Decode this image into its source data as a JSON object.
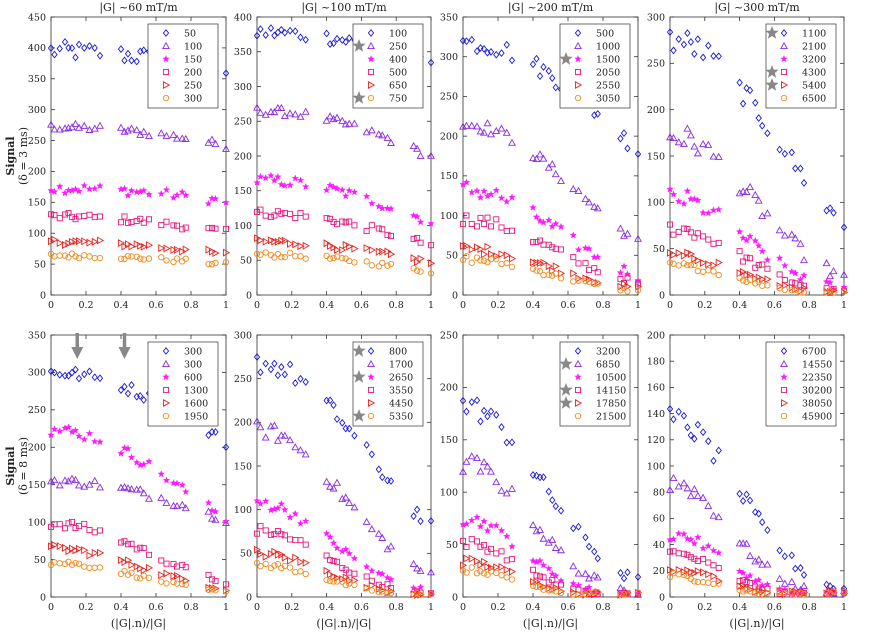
{
  "chart_data": {
    "type": "scatter",
    "shared": {
      "ylabel_top": "Signal",
      "ylabel_top_sub": "(δ = 3 ms)",
      "ylabel_bottom": "Signal",
      "ylabel_bottom_sub": "(δ = 8 ms)",
      "xlabel": "(|G|.n)/|G|",
      "column_titles": [
        "|G| ~60 mT/m",
        "|G| ~100 mT/m",
        "|G| ~200 mT/m",
        "|G| ~300 mT/m"
      ],
      "x_ticks": [
        "0",
        "0.2",
        "0.4",
        "0.6",
        "0.8",
        "1"
      ],
      "xlim": [
        0,
        1
      ],
      "series_styles": [
        {
          "marker": "diamond",
          "color": "#1a1adb"
        },
        {
          "marker": "triangle",
          "color": "#8a2be2"
        },
        {
          "marker": "star",
          "color": "#ff1aff"
        },
        {
          "marker": "square",
          "color": "#e6197f"
        },
        {
          "marker": "triangle-right",
          "color": "#e8231e"
        },
        {
          "marker": "circle",
          "color": "#f08c1e"
        }
      ],
      "x_samples": [
        0.0,
        0.02,
        0.05,
        0.08,
        0.1,
        0.12,
        0.14,
        0.16,
        0.19,
        0.22,
        0.25,
        0.28,
        0.4,
        0.42,
        0.44,
        0.46,
        0.49,
        0.51,
        0.53,
        0.56,
        0.63,
        0.66,
        0.7,
        0.72,
        0.75,
        0.77,
        0.9,
        0.92,
        0.94,
        1.0
      ]
    },
    "panels": [
      {
        "id": "r1c1",
        "ylim": [
          0,
          450
        ],
        "y_ticks": [
          "0",
          "50",
          "100",
          "150",
          "200",
          "250",
          "300",
          "350",
          "400",
          "450"
        ],
        "legend": [
          "50",
          "100",
          "150",
          "200",
          "250",
          "300"
        ],
        "legend_stars": [],
        "series": [
          {
            "y0": 395,
            "decay": 0.1,
            "scatter": 15
          },
          {
            "y0": 272,
            "decay": 0.13,
            "scatter": 6
          },
          {
            "y0": 173,
            "decay": 0.15,
            "scatter": 8
          },
          {
            "y0": 127,
            "decay": 0.25,
            "scatter": 6
          },
          {
            "y0": 86,
            "decay": 0.3,
            "scatter": 5
          },
          {
            "y0": 64,
            "decay": 0.28,
            "scatter": 4
          }
        ]
      },
      {
        "id": "r1c2",
        "ylim": [
          0,
          400
        ],
        "y_ticks": [
          "0",
          "50",
          "100",
          "150",
          "200",
          "250",
          "300",
          "350",
          "400"
        ],
        "legend": [
          "100",
          "250",
          "400",
          "500",
          "650",
          "750"
        ],
        "legend_stars": [
          1,
          5
        ],
        "series": [
          {
            "y0": 378,
            "decay": 0.13,
            "scatter": 10
          },
          {
            "y0": 265,
            "decay": 0.32,
            "scatter": 6
          },
          {
            "y0": 165,
            "decay": 0.5,
            "scatter": 8
          },
          {
            "y0": 118,
            "decay": 0.55,
            "scatter": 6
          },
          {
            "y0": 77,
            "decay": 0.55,
            "scatter": 5
          },
          {
            "y0": 58,
            "decay": 0.6,
            "scatter": 4
          }
        ]
      },
      {
        "id": "r1c3",
        "ylim": [
          0,
          350
        ],
        "y_ticks": [
          "0",
          "50",
          "100",
          "150",
          "200",
          "250",
          "300",
          "350"
        ],
        "legend": [
          "500",
          "1000",
          "1500",
          "2050",
          "2550",
          "3050"
        ],
        "legend_stars": [
          2
        ],
        "series": [
          {
            "y0": 318,
            "decay": 0.62,
            "scatter": 12
          },
          {
            "y0": 215,
            "decay": 1.3,
            "scatter": 8
          },
          {
            "y0": 133,
            "decay": 1.9,
            "scatter": 12
          },
          {
            "y0": 95,
            "decay": 2.1,
            "scatter": 8
          },
          {
            "y0": 58,
            "decay": 2.2,
            "scatter": 6
          },
          {
            "y0": 45,
            "decay": 2.4,
            "scatter": 5
          }
        ]
      },
      {
        "id": "r1c4",
        "ylim": [
          0,
          300
        ],
        "y_ticks": [
          "0",
          "50",
          "100",
          "150",
          "200",
          "250",
          "300"
        ],
        "legend": [
          "1100",
          "2100",
          "3200",
          "4300",
          "5400",
          "6500"
        ],
        "legend_stars": [
          0,
          3,
          4
        ],
        "series": [
          {
            "y0": 275,
            "decay": 1.45,
            "scatter": 15
          },
          {
            "y0": 172,
            "decay": 2.5,
            "scatter": 14
          },
          {
            "y0": 105,
            "decay": 3.2,
            "scatter": 12
          },
          {
            "y0": 72,
            "decay": 3.6,
            "scatter": 8
          },
          {
            "y0": 43,
            "decay": 3.8,
            "scatter": 5
          },
          {
            "y0": 32,
            "decay": 4.0,
            "scatter": 4
          }
        ]
      },
      {
        "id": "r2c1",
        "ylim": [
          0,
          350
        ],
        "y_ticks": [
          "0",
          "50",
          "100",
          "150",
          "200",
          "250",
          "300",
          "350"
        ],
        "legend": [
          "300",
          "300",
          "600",
          "1300",
          "1600",
          "1950"
        ],
        "legend_stars": [],
        "arrows_x": [
          0.15,
          0.42
        ],
        "series": [
          {
            "y0": 300,
            "decay": 0.42,
            "scatter": 8
          },
          {
            "y0": 155,
            "decay": 0.45,
            "scatter": 6
          },
          {
            "y0": 223,
            "decay": 0.85,
            "scatter": 8
          },
          {
            "y0": 98,
            "decay": 1.8,
            "scatter": 6
          },
          {
            "y0": 65,
            "decay": 2.0,
            "scatter": 5
          },
          {
            "y0": 46,
            "decay": 2.2,
            "scatter": 4
          }
        ]
      },
      {
        "id": "r2c2",
        "ylim": [
          0,
          300
        ],
        "y_ticks": [
          "0",
          "50",
          "100",
          "150",
          "200",
          "250",
          "300"
        ],
        "legend": [
          "800",
          "1700",
          "2650",
          "3550",
          "4450",
          "5350"
        ],
        "legend_stars": [
          0,
          2,
          5
        ],
        "series": [
          {
            "y0": 268,
            "decay": 1.35,
            "scatter": 12
          },
          {
            "y0": 192,
            "decay": 2.3,
            "scatter": 10
          },
          {
            "y0": 108,
            "decay": 3.2,
            "scatter": 8
          },
          {
            "y0": 76,
            "decay": 3.6,
            "scatter": 6
          },
          {
            "y0": 50,
            "decay": 3.8,
            "scatter": 5
          },
          {
            "y0": 37,
            "decay": 4.0,
            "scatter": 4
          }
        ]
      },
      {
        "id": "r2c3",
        "ylim": [
          0,
          250
        ],
        "y_ticks": [
          "0",
          "50",
          "100",
          "150",
          "200",
          "250"
        ],
        "legend": [
          "3200",
          "6850",
          "10500",
          "14150",
          "17850",
          "21500"
        ],
        "legend_stars": [
          1,
          3,
          4
        ],
        "series": [
          {
            "y0": 182,
            "decay": 2.8,
            "scatter": 12
          },
          {
            "y0": 128,
            "decay": 4.0,
            "scatter": 10
          },
          {
            "y0": 75,
            "decay": 5.0,
            "scatter": 7
          },
          {
            "y0": 52,
            "decay": 5.5,
            "scatter": 5
          },
          {
            "y0": 34,
            "decay": 5.8,
            "scatter": 4
          },
          {
            "y0": 26,
            "decay": 6.0,
            "scatter": 3
          }
        ]
      },
      {
        "id": "r2c4",
        "ylim": [
          0,
          200
        ],
        "y_ticks": [
          "0",
          "20",
          "40",
          "60",
          "80",
          "100",
          "120",
          "140",
          "160",
          "180",
          "200"
        ],
        "legend": [
          "6700",
          "14550",
          "22350",
          "30200",
          "38050",
          "45900"
        ],
        "legend_stars": [],
        "series": [
          {
            "y0": 135,
            "decay": 3.6,
            "scatter": 10
          },
          {
            "y0": 88,
            "decay": 5.0,
            "scatter": 8
          },
          {
            "y0": 48,
            "decay": 6.0,
            "scatter": 5
          },
          {
            "y0": 33,
            "decay": 6.5,
            "scatter": 4
          },
          {
            "y0": 22,
            "decay": 7.0,
            "scatter": 3
          },
          {
            "y0": 16,
            "decay": 7.2,
            "scatter": 3
          }
        ]
      }
    ]
  }
}
